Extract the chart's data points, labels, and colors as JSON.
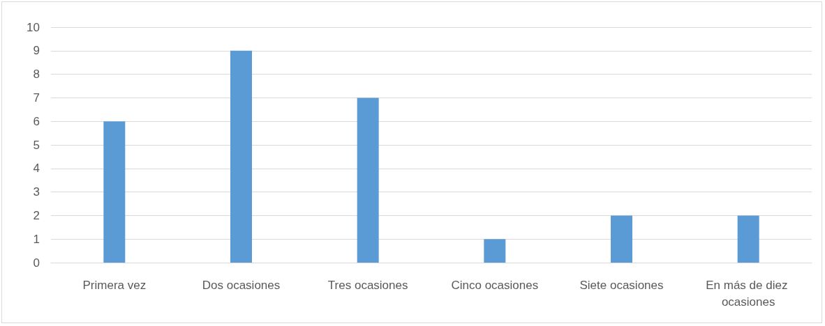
{
  "chart_data": {
    "type": "bar",
    "categories": [
      "Primera vez",
      "Dos ocasiones",
      "Tres ocasiones",
      "Cinco ocasiones",
      "Siete ocasiones",
      "En más de diez ocasiones"
    ],
    "values": [
      6,
      9,
      7,
      1,
      2,
      2
    ],
    "color": "#5b9bd5",
    "ylim": [
      0,
      10
    ],
    "yticks": [
      0,
      1,
      2,
      3,
      4,
      5,
      6,
      7,
      8,
      9,
      10
    ],
    "grid": "y"
  }
}
